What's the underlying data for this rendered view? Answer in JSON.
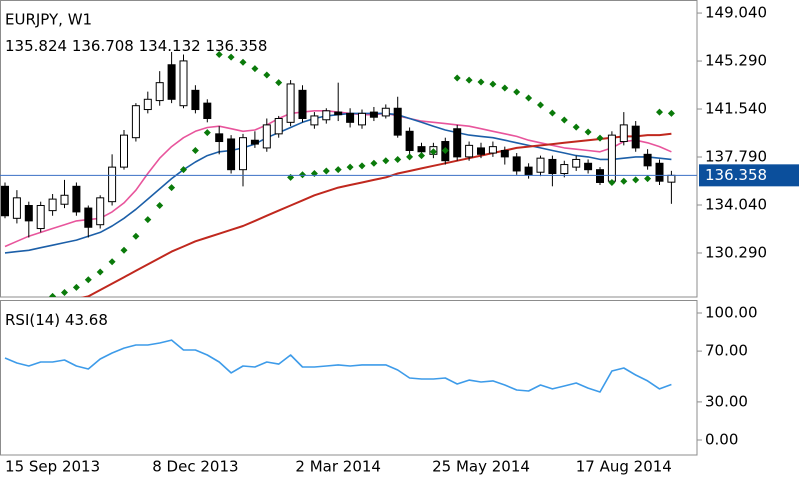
{
  "chart_data": [
    {
      "type": "candlestick",
      "title": "EURJPY, W1",
      "categories": [
        null,
        null,
        null,
        null,
        "15 Sep 2013",
        null,
        null,
        null,
        null,
        null,
        null,
        null,
        null,
        null,
        null,
        null,
        "8 Dec 2013",
        null,
        null,
        null,
        null,
        null,
        null,
        null,
        null,
        null,
        null,
        null,
        "2 Mar 2014",
        null,
        null,
        null,
        null,
        null,
        null,
        null,
        null,
        null,
        null,
        null,
        "25 May 2014",
        null,
        null,
        null,
        null,
        null,
        null,
        null,
        null,
        null,
        null,
        null,
        "17 Aug 2014",
        null,
        null,
        null,
        null
      ],
      "open": [
        135.5,
        133.0,
        134.0,
        132.2,
        133.6,
        134.1,
        135.5,
        133.8,
        132.5,
        134.3,
        137.0,
        139.3,
        141.5,
        142.2,
        145.0,
        141.8,
        143.0,
        142.0,
        139.6,
        139.2,
        136.8,
        139.1,
        138.5,
        139.6,
        140.5,
        143.0,
        140.3,
        140.7,
        141.3,
        141.2,
        140.3,
        141.3,
        141.0,
        141.6,
        139.8,
        138.6,
        138.0,
        139.0,
        140.0,
        137.8,
        138.5,
        138.1,
        138.3,
        137.8,
        137.0,
        136.6,
        137.6,
        136.5,
        137.0,
        137.3,
        136.8,
        135.9,
        139.0,
        140.2,
        138.0,
        137.3,
        135.824
      ],
      "high": [
        135.8,
        135.2,
        134.3,
        134.3,
        134.9,
        136.0,
        135.8,
        134.0,
        134.8,
        138.0,
        139.9,
        142.0,
        142.9,
        144.5,
        146.0,
        145.8,
        143.4,
        142.3,
        140.2,
        139.5,
        139.6,
        139.8,
        140.8,
        141.0,
        143.8,
        143.4,
        141.3,
        141.6,
        143.6,
        141.6,
        141.5,
        141.7,
        141.9,
        142.5,
        140.1,
        138.9,
        138.9,
        139.3,
        140.3,
        139.0,
        138.9,
        139.0,
        138.6,
        138.1,
        137.3,
        137.9,
        137.9,
        137.5,
        137.9,
        137.6,
        137.0,
        139.8,
        141.3,
        140.6,
        138.4,
        137.6,
        136.708
      ],
      "low": [
        133.0,
        132.6,
        131.5,
        131.9,
        133.2,
        133.8,
        133.2,
        131.5,
        132.2,
        134.0,
        136.8,
        139.0,
        141.2,
        141.8,
        142.0,
        141.6,
        141.2,
        140.5,
        138.0,
        136.5,
        135.5,
        138.5,
        138.2,
        139.3,
        140.2,
        140.5,
        140.0,
        140.4,
        140.6,
        140.1,
        140.0,
        140.6,
        140.8,
        139.3,
        138.0,
        137.9,
        137.7,
        137.2,
        137.5,
        137.5,
        137.7,
        137.8,
        137.2,
        136.4,
        136.1,
        136.3,
        135.5,
        136.2,
        136.7,
        136.5,
        135.6,
        135.6,
        138.7,
        138.2,
        136.8,
        135.6,
        134.132
      ],
      "close": [
        133.2,
        134.6,
        132.8,
        134.0,
        134.5,
        134.8,
        133.5,
        132.3,
        134.6,
        137.0,
        139.5,
        141.8,
        142.3,
        143.6,
        142.3,
        145.3,
        141.5,
        140.8,
        139.0,
        136.8,
        139.3,
        138.8,
        140.3,
        140.8,
        143.5,
        140.8,
        141.0,
        141.4,
        141.1,
        140.5,
        141.2,
        140.9,
        141.6,
        139.5,
        138.3,
        138.2,
        138.6,
        137.5,
        137.8,
        138.7,
        138.0,
        138.6,
        137.8,
        136.7,
        136.4,
        137.7,
        136.5,
        137.2,
        137.6,
        136.8,
        135.8,
        139.5,
        140.3,
        138.5,
        137.1,
        135.9,
        136.358
      ],
      "up_color": "#ffffff",
      "down_color": "#000000",
      "price_line_color": "#3a6fc4",
      "series": [
        {
          "color": "#e8559c",
          "values": [
            130.8,
            131.2,
            131.6,
            131.9,
            132.2,
            132.5,
            132.8,
            132.9,
            133.0,
            133.5,
            134.2,
            135.2,
            136.5,
            137.7,
            138.6,
            139.3,
            139.8,
            140.1,
            140.2,
            140.0,
            139.8,
            139.9,
            140.3,
            140.8,
            141.2,
            141.3,
            141.4,
            141.4,
            141.3,
            141.2,
            141.1,
            141.1,
            141.2,
            141.0,
            140.8,
            140.6,
            140.5,
            140.4,
            140.3,
            140.2,
            140.0,
            139.8,
            139.6,
            139.4,
            139.1,
            138.9,
            138.7,
            138.5,
            138.4,
            138.3,
            138.2,
            138.5,
            139.0,
            139.1,
            138.9,
            138.6,
            138.2
          ]
        },
        {
          "color": "#1c5fa8",
          "values": [
            130.3,
            130.4,
            130.5,
            130.7,
            130.9,
            131.1,
            131.3,
            131.6,
            131.9,
            132.4,
            133.0,
            133.7,
            134.5,
            135.3,
            136.1,
            136.8,
            137.4,
            137.9,
            138.2,
            138.3,
            138.5,
            138.8,
            139.3,
            139.7,
            140.1,
            140.5,
            140.8,
            141.0,
            141.1,
            141.2,
            141.2,
            141.2,
            141.2,
            141.1,
            140.8,
            140.5,
            140.2,
            139.9,
            139.7,
            139.5,
            139.4,
            139.3,
            139.1,
            138.9,
            138.7,
            138.5,
            138.3,
            138.1,
            137.9,
            137.8,
            137.6,
            137.6,
            137.7,
            137.8,
            137.8,
            137.7,
            137.6
          ]
        },
        {
          "color": "#c0281e",
          "values": [
            125.5,
            125.7,
            125.9,
            126.1,
            126.3,
            126.5,
            126.7,
            126.9,
            127.4,
            127.9,
            128.4,
            128.9,
            129.4,
            129.9,
            130.4,
            130.8,
            131.2,
            131.5,
            131.8,
            132.1,
            132.4,
            132.8,
            133.2,
            133.6,
            134.0,
            134.4,
            134.8,
            135.1,
            135.4,
            135.6,
            135.8,
            136.0,
            136.2,
            136.5,
            136.7,
            136.9,
            137.1,
            137.3,
            137.5,
            137.7,
            137.9,
            138.1,
            138.3,
            138.5,
            138.6,
            138.7,
            138.8,
            138.9,
            139.0,
            139.1,
            139.2,
            139.3,
            139.4,
            139.4,
            139.5,
            139.5,
            139.6
          ]
        }
      ],
      "sar": {
        "color": "#0a7a0a",
        "values": [
          null,
          null,
          null,
          null,
          126.9,
          127.2,
          127.6,
          128.2,
          128.8,
          129.6,
          130.5,
          131.6,
          132.9,
          134.0,
          135.4,
          136.8,
          138.3,
          139.7,
          145.8,
          145.6,
          145.2,
          144.7,
          144.2,
          143.6,
          136.2,
          136.4,
          136.5,
          136.7,
          136.8,
          137.0,
          137.1,
          137.3,
          137.5,
          137.6,
          137.8,
          137.9,
          138.2,
          138.3,
          143.96,
          143.8,
          143.65,
          143.49,
          143.18,
          142.87,
          142.4,
          141.85,
          141.23,
          140.68,
          140.13,
          139.74,
          139.27,
          135.8,
          135.9,
          136.0,
          136.1,
          141.3,
          141.2
        ]
      },
      "ylim": [
        126.85,
        150.06
      ],
      "yticks": [
        {
          "value": 149.04,
          "label": "149.040"
        },
        {
          "value": 145.29,
          "label": "145.290"
        },
        {
          "value": 141.54,
          "label": "141.540"
        },
        {
          "value": 137.79,
          "label": "137.790"
        },
        {
          "value": 134.04,
          "label": "134.040"
        },
        {
          "value": 130.29,
          "label": "130.290"
        }
      ]
    },
    {
      "type": "line",
      "title": "RSI(14)",
      "series": [
        {
          "color": "#3d9be9",
          "values": [
            64.6,
            60.6,
            58.3,
            61.4,
            61.4,
            63.0,
            58.3,
            55.9,
            63.8,
            68.5,
            72.4,
            74.8,
            74.8,
            76.4,
            78.7,
            70.9,
            70.9,
            66.9,
            61.4,
            52.8,
            58.3,
            57.5,
            61.4,
            59.8,
            66.9,
            57.5,
            57.5,
            58.3,
            59.1,
            58.3,
            59.1,
            59.1,
            59.1,
            55.1,
            48.8,
            48.0,
            48.0,
            48.8,
            44.1,
            47.2,
            45.7,
            46.5,
            43.3,
            39.4,
            38.6,
            43.3,
            40.2,
            42.5,
            44.9,
            40.9,
            37.8,
            54.3,
            56.7,
            51.2,
            46.5,
            40.2,
            43.68
          ]
        }
      ],
      "ylim": [
        -11.81,
        110.24
      ],
      "yticks": [
        {
          "value": 100,
          "label": "100.00"
        },
        {
          "value": 70,
          "label": "70.00"
        },
        {
          "value": 30,
          "label": "30.00"
        },
        {
          "value": 0,
          "label": "0.00"
        }
      ]
    }
  ]
}
